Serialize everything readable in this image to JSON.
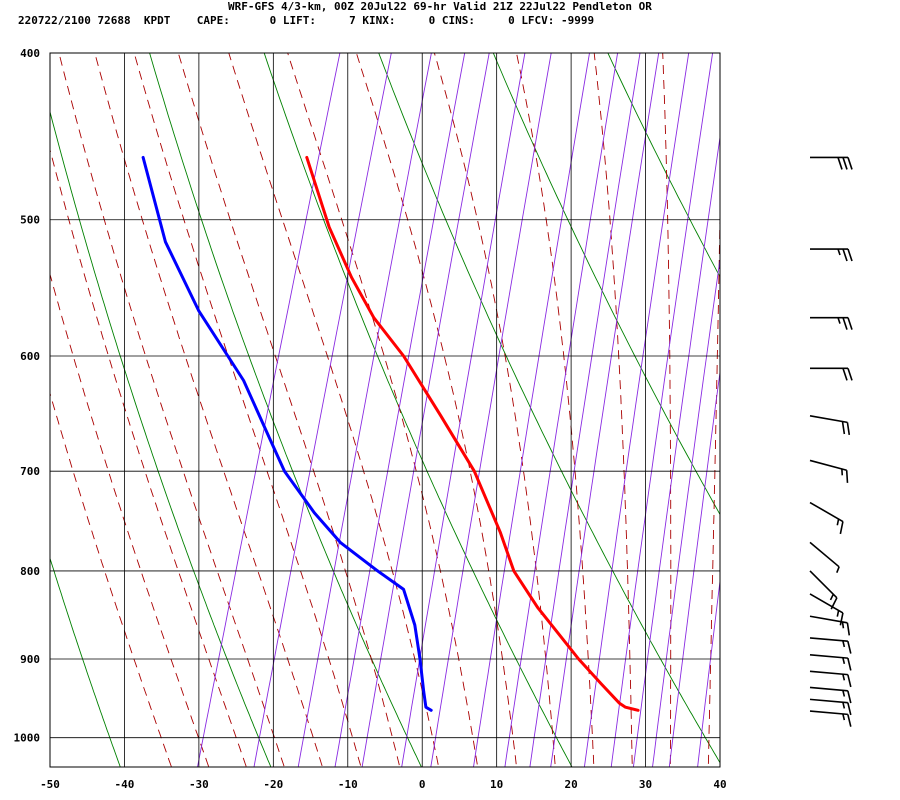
{
  "header": {
    "line1": "WRF-GFS 4/3-km, 00Z 20Jul22 69-hr Valid 21Z 22Jul22 Pendleton OR",
    "line2": "220722/2100 72688  KPDT    CAPE:      0 LIFT:     7 KINX:     0 CINS:     0 LFCV: -9999"
  },
  "colors": {
    "temperature": "#ff0000",
    "dewpoint": "#0000ff",
    "dry_adiabat": "#008000",
    "moist_adiabat": "#aa0000",
    "isotherm": "#8a2be2",
    "grid": "#000000"
  },
  "chart_data": {
    "type": "line",
    "title": "",
    "xlabel": "",
    "ylabel": "",
    "xlim": [
      -50,
      40
    ],
    "ylim": [
      1040,
      400
    ],
    "y_scale": "log (pressure, hPa)",
    "x_ticks": [
      "-50",
      "-40",
      "-30",
      "-20",
      "-10",
      "0",
      "10",
      "20",
      "30",
      "40"
    ],
    "y_ticks": [
      "400",
      "500",
      "600",
      "700",
      "800",
      "900",
      "1000"
    ],
    "grid": true,
    "series": [
      {
        "kind": "temperature",
        "color": "#ff0000",
        "points": [
          [
            29.0,
            964
          ],
          [
            27.3,
            960
          ],
          [
            26.5,
            955
          ],
          [
            24.0,
            930
          ],
          [
            21.0,
            900
          ],
          [
            15.5,
            840
          ],
          [
            12.3,
            800
          ],
          [
            10.5,
            760
          ],
          [
            7.0,
            700
          ],
          [
            2.5,
            650
          ],
          [
            -2.5,
            600
          ],
          [
            -6.5,
            570
          ],
          [
            -9.5,
            540
          ],
          [
            -12.5,
            505
          ],
          [
            -15.5,
            460
          ]
        ]
      },
      {
        "kind": "dewpoint",
        "color": "#0000ff",
        "points": [
          [
            1.2,
            964
          ],
          [
            0.5,
            960
          ],
          [
            0.2,
            940
          ],
          [
            -0.3,
            900
          ],
          [
            -1.0,
            860
          ],
          [
            -2.5,
            820
          ],
          [
            -6.0,
            800
          ],
          [
            -11.0,
            770
          ],
          [
            -14.5,
            740
          ],
          [
            -18.5,
            700
          ],
          [
            -20.5,
            670
          ],
          [
            -24.0,
            620
          ],
          [
            -30.0,
            565
          ],
          [
            -34.5,
            515
          ],
          [
            -37.5,
            460
          ]
        ]
      }
    ],
    "wind_barbs_kt": [
      {
        "p": 460,
        "dir": 270,
        "spd": 30
      },
      {
        "p": 520,
        "dir": 270,
        "spd": 25
      },
      {
        "p": 570,
        "dir": 270,
        "spd": 25
      },
      {
        "p": 610,
        "dir": 270,
        "spd": 20
      },
      {
        "p": 650,
        "dir": 260,
        "spd": 20
      },
      {
        "p": 690,
        "dir": 255,
        "spd": 15
      },
      {
        "p": 730,
        "dir": 240,
        "spd": 15
      },
      {
        "p": 770,
        "dir": 230,
        "spd": 5
      },
      {
        "p": 800,
        "dir": 225,
        "spd": 15
      },
      {
        "p": 825,
        "dir": 240,
        "spd": 15
      },
      {
        "p": 850,
        "dir": 260,
        "spd": 15
      },
      {
        "p": 875,
        "dir": 265,
        "spd": 15
      },
      {
        "p": 895,
        "dir": 265,
        "spd": 15
      },
      {
        "p": 915,
        "dir": 265,
        "spd": 15
      },
      {
        "p": 935,
        "dir": 265,
        "spd": 15
      },
      {
        "p": 950,
        "dir": 265,
        "spd": 15
      },
      {
        "p": 965,
        "dir": 265,
        "spd": 15
      }
    ]
  }
}
